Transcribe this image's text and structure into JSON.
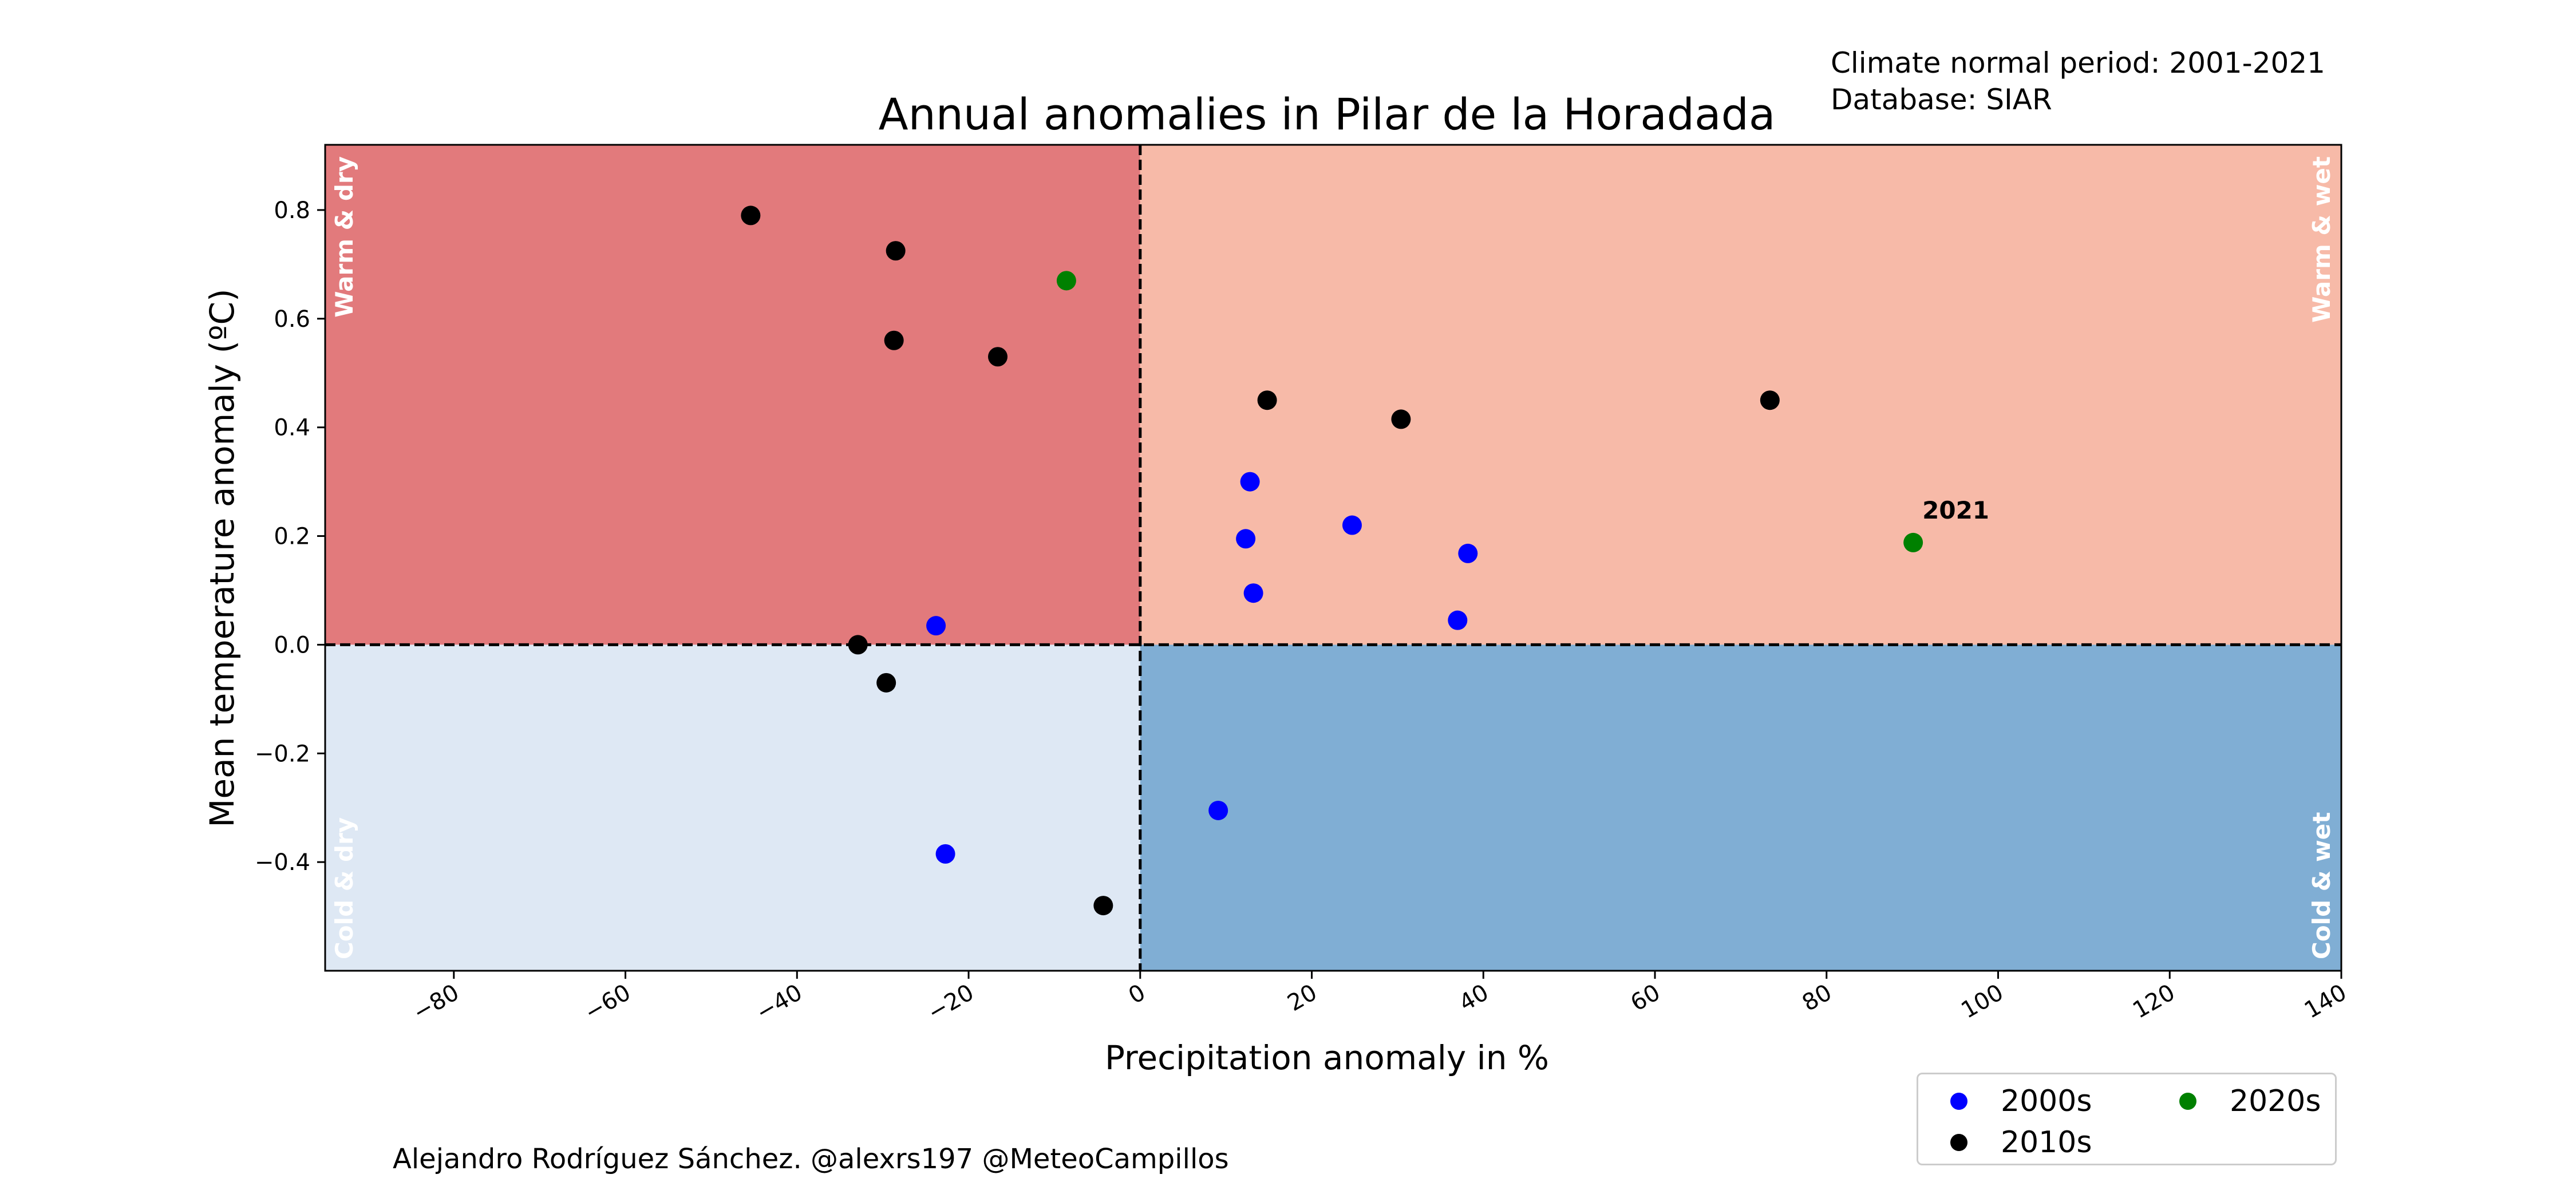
{
  "notes": {
    "normal_period": "Climate normal period: 2001-2021",
    "database": "Database: SIAR"
  },
  "footer": {
    "credit": "Alejandro Rodríguez Sánchez. @alexrs197 @MeteoCampillos"
  },
  "colors": {
    "warm_dry": "#e27a7c",
    "warm_wet": "#f7baa8",
    "cold_dry": "#dee8f4",
    "cold_wet": "#80aed4",
    "series_2000s": "#0000ff",
    "series_2010s": "#000000",
    "series_2020s": "#008000",
    "quadrant_label": "#ffffff"
  },
  "chart_data": {
    "type": "scatter",
    "title": "Annual anomalies in Pilar de la Horadada",
    "xlabel": "Precipitation anomaly in %",
    "ylabel": "Mean temperature anomaly (ºC)",
    "xlim": [
      -95,
      140
    ],
    "ylim": [
      -0.6,
      0.92
    ],
    "x_ticks": [
      -80,
      -60,
      -40,
      -20,
      0,
      20,
      40,
      60,
      80,
      100,
      120,
      140
    ],
    "x_tick_labels": [
      "−80",
      "−60",
      "−40",
      "−20",
      "0",
      "20",
      "40",
      "60",
      "80",
      "100",
      "120",
      "140"
    ],
    "y_ticks": [
      -0.4,
      -0.2,
      0.0,
      0.2,
      0.4,
      0.6,
      0.8
    ],
    "y_tick_labels": [
      "−0.4",
      "−0.2",
      "0.0",
      "0.2",
      "0.4",
      "0.6",
      "0.8"
    ],
    "grid": false,
    "reference_lines": {
      "x": 0,
      "y": 0,
      "style": "dashed"
    },
    "quadrant_labels": {
      "warm_dry": "Warm & dry",
      "warm_wet": "Warm & wet",
      "cold_dry": "Cold & dry",
      "cold_wet": "Cold & wet"
    },
    "legend_placement": "bottom-right",
    "series": [
      {
        "name": "2000s",
        "color": "#0000ff",
        "points": [
          {
            "x": 12.8,
            "y": 0.3
          },
          {
            "x": 12.3,
            "y": 0.195
          },
          {
            "x": 24.7,
            "y": 0.22
          },
          {
            "x": 38.2,
            "y": 0.168
          },
          {
            "x": 13.2,
            "y": 0.095
          },
          {
            "x": 37.0,
            "y": 0.045
          },
          {
            "x": -23.8,
            "y": 0.035
          },
          {
            "x": 9.1,
            "y": -0.305
          },
          {
            "x": -22.7,
            "y": -0.385
          }
        ]
      },
      {
        "name": "2010s",
        "color": "#000000",
        "points": [
          {
            "x": -45.4,
            "y": 0.79
          },
          {
            "x": -28.5,
            "y": 0.725
          },
          {
            "x": -28.7,
            "y": 0.56
          },
          {
            "x": -16.6,
            "y": 0.53
          },
          {
            "x": 14.8,
            "y": 0.45
          },
          {
            "x": 30.4,
            "y": 0.415
          },
          {
            "x": 73.4,
            "y": 0.45
          },
          {
            "x": -32.9,
            "y": 0.0
          },
          {
            "x": -29.6,
            "y": -0.07
          },
          {
            "x": -4.3,
            "y": -0.48
          }
        ]
      },
      {
        "name": "2020s",
        "color": "#008000",
        "points": [
          {
            "x": -8.6,
            "y": 0.67
          },
          {
            "x": 90.1,
            "y": 0.188,
            "label": "2021"
          }
        ]
      }
    ]
  }
}
